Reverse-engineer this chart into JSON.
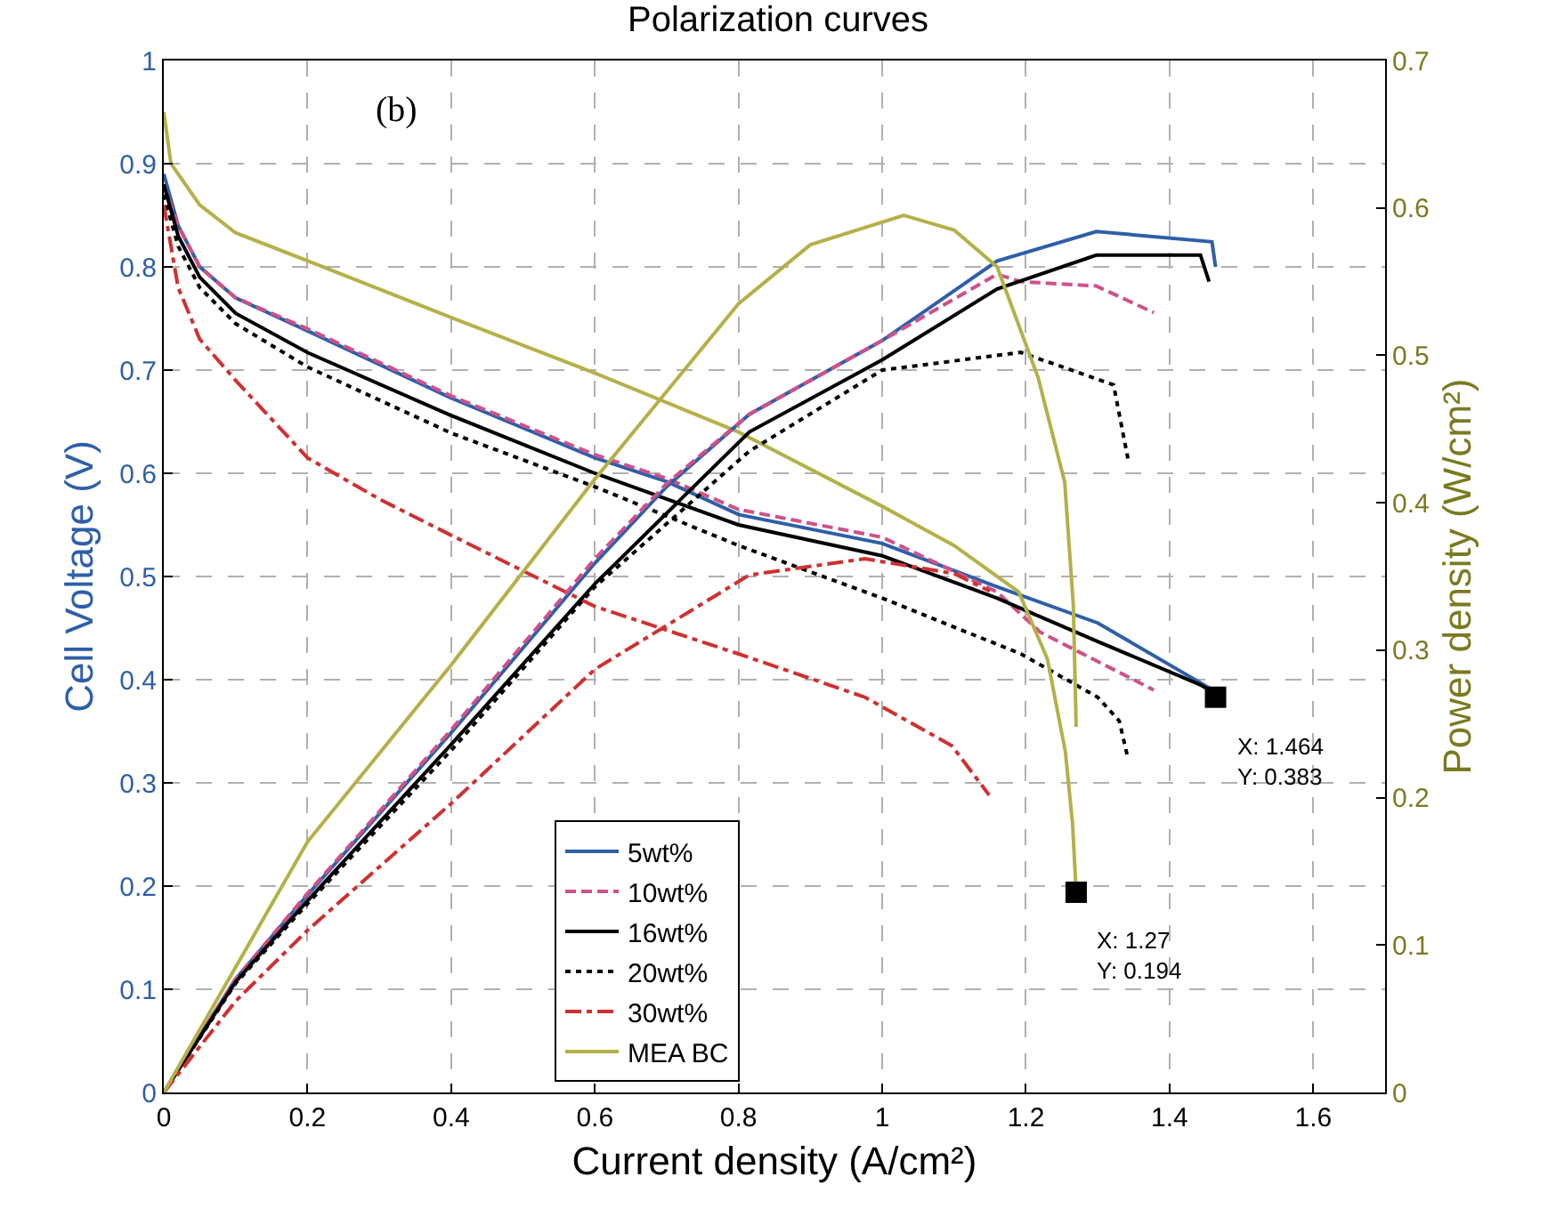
{
  "chart_data": {
    "type": "line",
    "title": "Polarization curves",
    "xlabel": "Current density (A/cm²)",
    "ylabel": "Cell Voltage (V)",
    "y2label": "Power density (W/cm²)",
    "xlim": [
      0,
      1.7
    ],
    "xticks": [
      0,
      0.2,
      0.4,
      0.6,
      0.8,
      1,
      1.2,
      1.4,
      1.6
    ],
    "ylim": [
      0,
      1
    ],
    "yticks": [
      0,
      0.1,
      0.2,
      0.3,
      0.4,
      0.5,
      0.6,
      0.7,
      0.8,
      0.9,
      1
    ],
    "y2lim": [
      0,
      0.7
    ],
    "y2ticks": [
      0,
      0.1,
      0.2,
      0.3,
      0.4,
      0.5,
      0.6,
      0.7
    ],
    "grid": true,
    "legend": "bottom",
    "marker": "none",
    "series": [
      {
        "name": "5wt%",
        "color": "#2e5fa8",
        "line_style": "solid",
        "x": [
          0,
          0.02,
          0.05,
          0.1,
          0.2,
          0.4,
          0.6,
          0.7,
          0.8,
          1.0,
          1.16,
          1.3,
          1.46,
          1.464
        ],
        "values": [
          0.89,
          0.84,
          0.8,
          0.77,
          0.738,
          0.673,
          0.615,
          0.592,
          0.56,
          0.532,
          0.49,
          0.455,
          0.39,
          0.383
        ]
      },
      {
        "name": "10wt%",
        "color": "#d0508a",
        "line_style": "dashed",
        "x": [
          0,
          0.02,
          0.05,
          0.1,
          0.2,
          0.4,
          0.6,
          0.7,
          0.8,
          1.0,
          1.16,
          1.22,
          1.378
        ],
        "values": [
          0.88,
          0.84,
          0.8,
          0.77,
          0.74,
          0.675,
          0.618,
          0.595,
          0.565,
          0.538,
          0.485,
          0.446,
          0.39
        ]
      },
      {
        "name": "16wt%",
        "color": "#000000",
        "line_style": "solid",
        "x": [
          0,
          0.02,
          0.05,
          0.1,
          0.2,
          0.4,
          0.6,
          0.8,
          1.0,
          1.16,
          1.3,
          1.443,
          1.455
        ],
        "values": [
          0.88,
          0.83,
          0.79,
          0.755,
          0.717,
          0.656,
          0.6,
          0.55,
          0.52,
          0.479,
          0.437,
          0.395,
          0.39
        ]
      },
      {
        "name": "20wt%",
        "color": "#000000",
        "line_style": "dotted",
        "x": [
          0,
          0.02,
          0.05,
          0.1,
          0.2,
          0.4,
          0.6,
          0.8,
          1.0,
          1.193,
          1.3,
          1.33,
          1.342
        ],
        "values": [
          0.87,
          0.82,
          0.78,
          0.745,
          0.703,
          0.639,
          0.587,
          0.53,
          0.479,
          0.425,
          0.383,
          0.36,
          0.324
        ]
      },
      {
        "name": "30wt%",
        "color": "#d03030",
        "line_style": "dashdot",
        "x": [
          0,
          0.02,
          0.05,
          0.1,
          0.2,
          0.3,
          0.4,
          0.6,
          0.8,
          0.976,
          1.097,
          1.149
        ],
        "values": [
          0.86,
          0.78,
          0.73,
          0.69,
          0.615,
          0.575,
          0.54,
          0.471,
          0.425,
          0.383,
          0.336,
          0.288
        ]
      },
      {
        "name": "MEA BC",
        "color": "#b5b048",
        "line_style": "solid",
        "x": [
          0,
          0.01,
          0.05,
          0.1,
          0.2,
          0.4,
          0.6,
          0.8,
          1.0,
          1.1,
          1.19,
          1.23,
          1.255,
          1.265,
          1.27
        ],
        "values": [
          0.95,
          0.9,
          0.86,
          0.833,
          0.806,
          0.751,
          0.697,
          0.64,
          0.568,
          0.53,
          0.485,
          0.42,
          0.33,
          0.26,
          0.194
        ]
      },
      {
        "color": "#2e5fa8",
        "line_style": "solid",
        "axis": "y2",
        "x": [
          0,
          0.1,
          0.2,
          0.4,
          0.6,
          0.7,
          0.815,
          1.0,
          1.16,
          1.298,
          1.459,
          1.464
        ],
        "values": [
          0,
          0.077,
          0.134,
          0.244,
          0.359,
          0.411,
          0.46,
          0.51,
          0.564,
          0.584,
          0.577,
          0.56
        ]
      },
      {
        "color": "#d0508a",
        "line_style": "dashed",
        "axis": "y2",
        "x": [
          0,
          0.1,
          0.2,
          0.4,
          0.6,
          0.7,
          0.815,
          1.0,
          1.16,
          1.193,
          1.298,
          1.378
        ],
        "values": [
          0,
          0.077,
          0.135,
          0.246,
          0.362,
          0.413,
          0.46,
          0.51,
          0.555,
          0.55,
          0.547,
          0.529
        ]
      },
      {
        "color": "#000000",
        "line_style": "solid",
        "axis": "y2",
        "x": [
          0,
          0.1,
          0.2,
          0.4,
          0.6,
          0.815,
          1.0,
          1.16,
          1.298,
          1.443,
          1.455
        ],
        "values": [
          0,
          0.075,
          0.13,
          0.236,
          0.345,
          0.448,
          0.497,
          0.545,
          0.568,
          0.568,
          0.55
        ]
      },
      {
        "color": "#000000",
        "line_style": "dotted",
        "axis": "y2",
        "x": [
          0,
          0.1,
          0.2,
          0.4,
          0.6,
          0.815,
          1.0,
          1.193,
          1.322,
          1.342
        ],
        "values": [
          0,
          0.074,
          0.128,
          0.232,
          0.343,
          0.435,
          0.49,
          0.502,
          0.48,
          0.43
        ]
      },
      {
        "color": "#d03030",
        "line_style": "dashdot",
        "axis": "y2",
        "x": [
          0,
          0.1,
          0.2,
          0.4,
          0.6,
          0.815,
          0.976,
          1.1,
          1.15
        ],
        "values": [
          0,
          0.062,
          0.11,
          0.196,
          0.287,
          0.351,
          0.362,
          0.352,
          0.34
        ]
      },
      {
        "color": "#b5b048",
        "line_style": "solid",
        "axis": "y2",
        "x": [
          0,
          0.1,
          0.2,
          0.4,
          0.6,
          0.8,
          0.9,
          1.03,
          1.1,
          1.16,
          1.217,
          1.254,
          1.266,
          1.27
        ],
        "values": [
          0,
          0.085,
          0.17,
          0.29,
          0.416,
          0.535,
          0.575,
          0.595,
          0.585,
          0.56,
          0.485,
          0.414,
          0.331,
          0.248
        ]
      },
      {
        "type": "scatter",
        "color": "#000000",
        "marker": "square",
        "x": [
          1.464,
          1.27
        ],
        "values": [
          0.383,
          0.194
        ]
      }
    ],
    "annotations": [
      "(b)",
      {
        "text": "X: 1.464\nY: 0.383",
        "x": 1.464,
        "y": 0.383
      },
      {
        "text": "X: 1.27\nY: 0.194",
        "x": 1.27,
        "y": 0.194
      }
    ]
  }
}
